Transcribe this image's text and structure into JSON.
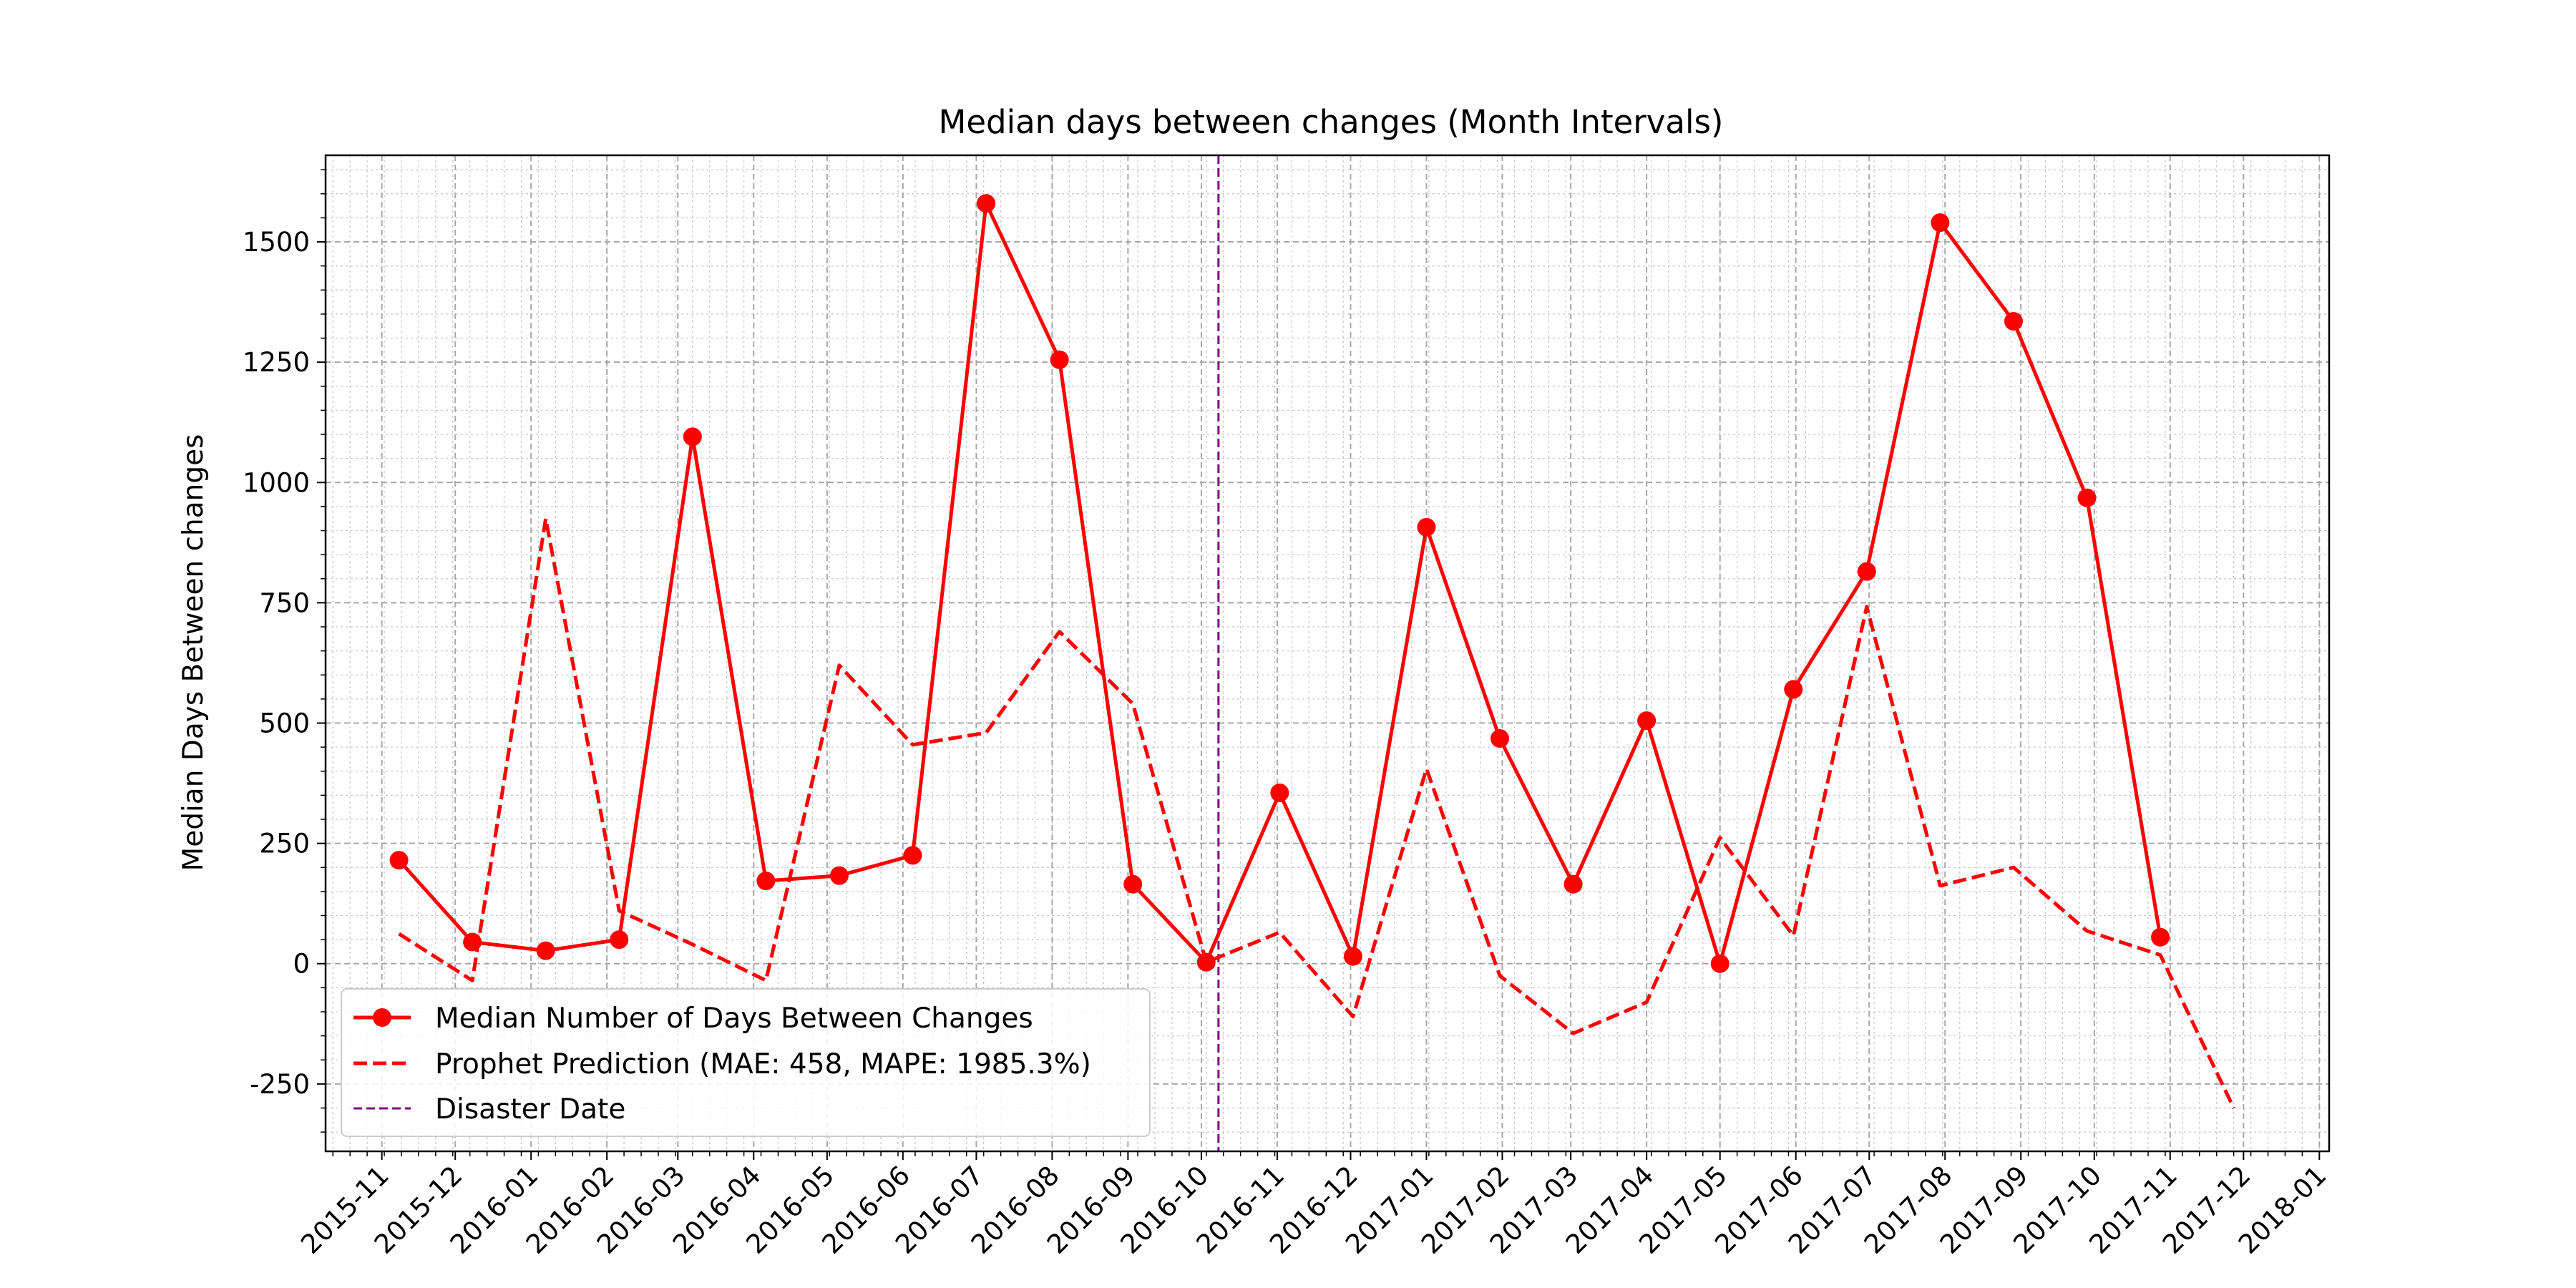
{
  "chart_data": {
    "type": "line",
    "title": "Median days between changes (Month Intervals)",
    "xlabel": "",
    "ylabel": "Median Days Between changes",
    "x_tick_labels": [
      "2015-11",
      "2015-12",
      "2016-01",
      "2016-02",
      "2016-03",
      "2016-04",
      "2016-05",
      "2016-06",
      "2016-07",
      "2016-08",
      "2016-09",
      "2016-10",
      "2016-11",
      "2016-12",
      "2017-01",
      "2017-02",
      "2017-03",
      "2017-04",
      "2017-05",
      "2017-06",
      "2017-07",
      "2017-08",
      "2017-09",
      "2017-10",
      "2017-11",
      "2017-12",
      "2018-01"
    ],
    "y_ticks": [
      -250,
      0,
      250,
      500,
      750,
      1000,
      1250,
      1500
    ],
    "xlim": [
      "2015-10-09",
      "2018-01-05"
    ],
    "ylim": [
      -390,
      1680
    ],
    "grid": true,
    "legend_position": "lower-left",
    "series": [
      {
        "name": "Median Number of Days Between Changes",
        "color": "#ff0000",
        "style": "solid",
        "marker": "circle",
        "x": [
          "2015-11-08",
          "2015-12-08",
          "2016-01-07",
          "2016-02-06",
          "2016-03-07",
          "2016-04-06",
          "2016-05-06",
          "2016-06-05",
          "2016-07-05",
          "2016-08-04",
          "2016-09-03",
          "2016-10-03",
          "2016-11-02",
          "2016-12-02",
          "2017-01-01",
          "2017-01-31",
          "2017-03-02",
          "2017-04-01",
          "2017-05-01",
          "2017-05-31",
          "2017-06-30",
          "2017-07-30",
          "2017-08-29",
          "2017-09-28",
          "2017-10-28"
        ],
        "y": [
          215,
          45,
          27,
          50,
          1095,
          172,
          183,
          225,
          1580,
          1255,
          165,
          3,
          355,
          15,
          907,
          468,
          165,
          505,
          0,
          570,
          815,
          1540,
          1335,
          968,
          55
        ]
      },
      {
        "name": "Prophet Prediction (MAE: 458, MAPE: 1985.3%)",
        "color": "#ff0000",
        "style": "dashed",
        "marker": "none",
        "x": [
          "2015-11-08",
          "2015-12-08",
          "2016-01-07",
          "2016-02-06",
          "2016-03-07",
          "2016-04-06",
          "2016-05-06",
          "2016-06-05",
          "2016-07-05",
          "2016-08-04",
          "2016-09-03",
          "2016-10-03",
          "2016-11-02",
          "2016-12-02",
          "2017-01-01",
          "2017-01-31",
          "2017-03-02",
          "2017-04-01",
          "2017-05-01",
          "2017-05-31",
          "2017-06-30",
          "2017-07-30",
          "2017-08-29",
          "2017-09-28",
          "2017-10-28",
          "2017-11-27"
        ],
        "y": [
          62,
          -35,
          925,
          110,
          40,
          -35,
          620,
          455,
          480,
          690,
          540,
          3,
          65,
          -110,
          405,
          -25,
          -145,
          -80,
          262,
          58,
          742,
          162,
          200,
          68,
          18,
          -300
        ]
      }
    ],
    "vertical_line": {
      "name": "Disaster Date",
      "x": "2016-10-08",
      "color": "#800080",
      "style": "dashed"
    }
  }
}
